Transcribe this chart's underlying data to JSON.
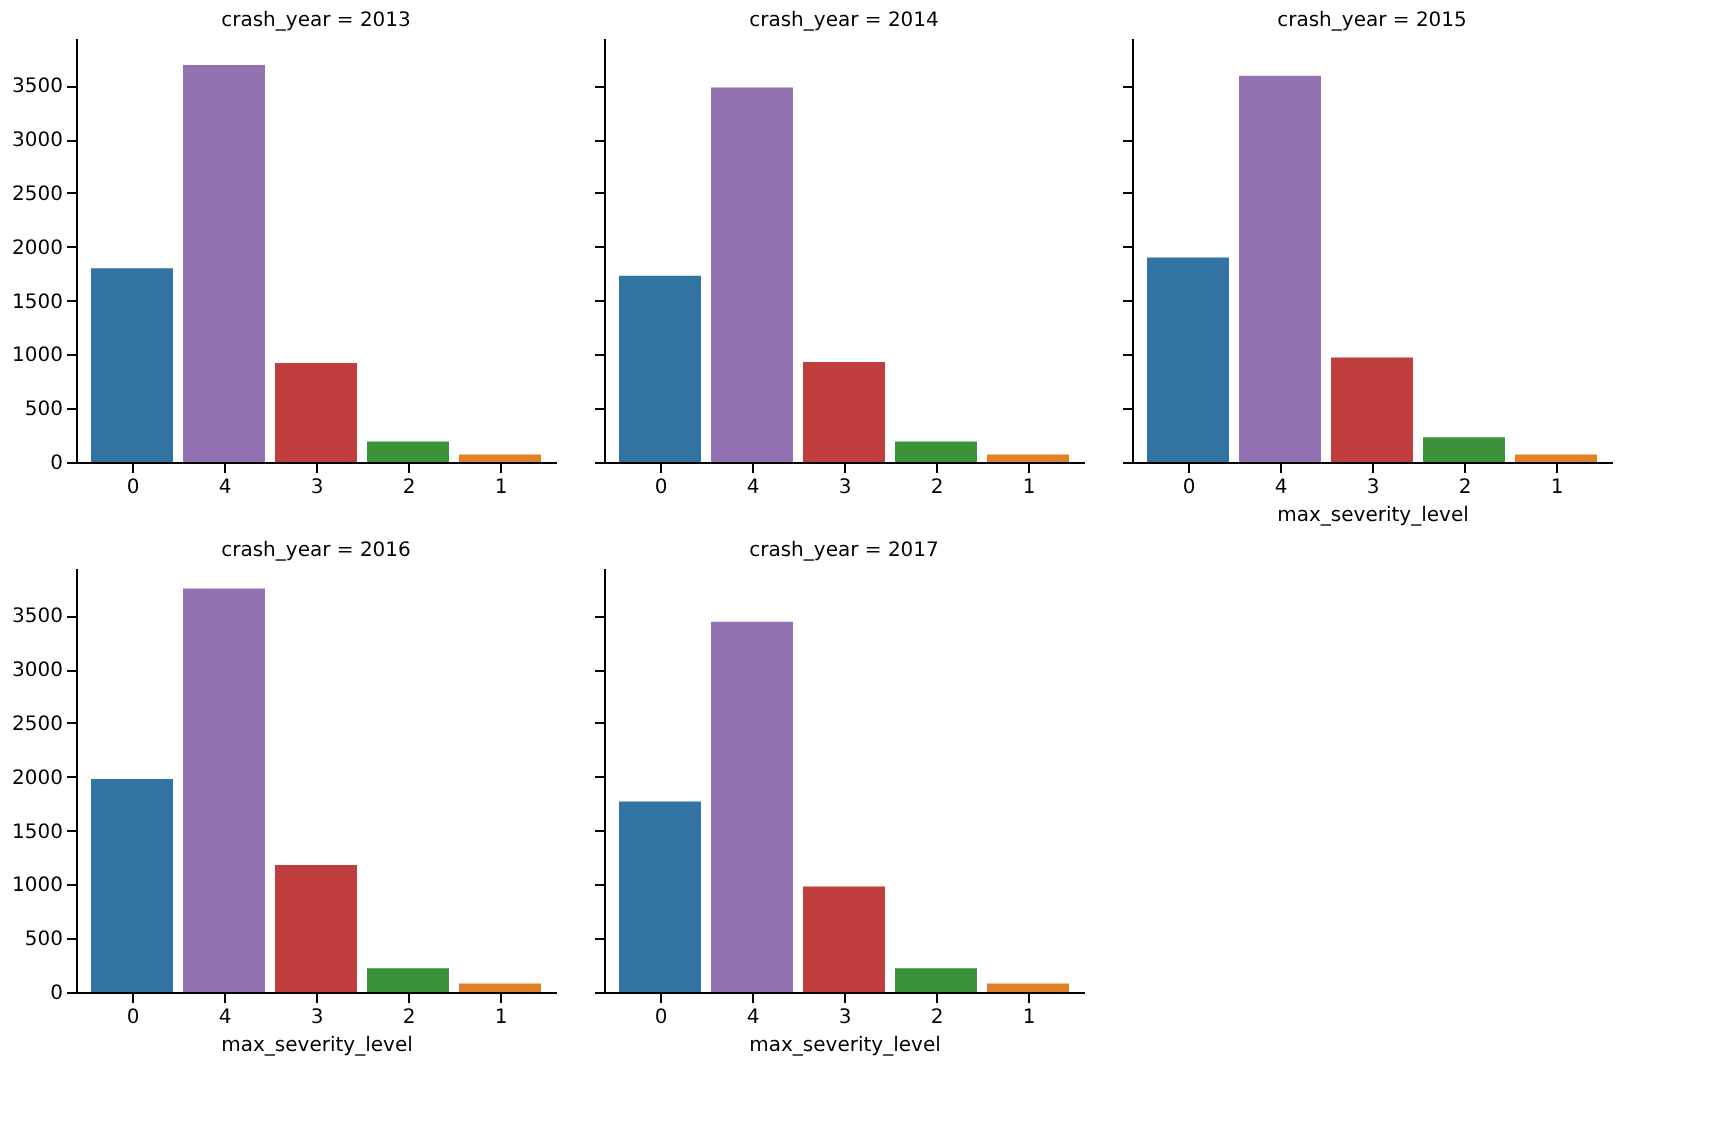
{
  "chart_data": [
    {
      "type": "bar",
      "title": "crash_year = 2013",
      "categories": [
        "0",
        "4",
        "3",
        "2",
        "1"
      ],
      "colors": [
        "#3274a1",
        "#9372b2",
        "#c03d3e",
        "#3a923a",
        "#e1812c"
      ],
      "values": [
        1800,
        3690,
        920,
        190,
        70
      ],
      "ylim": [
        0,
        3940
      ],
      "yticks": [
        0,
        500,
        1000,
        1500,
        2000,
        2500,
        3000,
        3500
      ]
    },
    {
      "type": "bar",
      "title": "crash_year = 2014",
      "categories": [
        "0",
        "4",
        "3",
        "2",
        "1"
      ],
      "colors": [
        "#3274a1",
        "#9372b2",
        "#c03d3e",
        "#3a923a",
        "#e1812c"
      ],
      "values": [
        1730,
        3480,
        930,
        190,
        70
      ],
      "ylim": [
        0,
        3940
      ],
      "yticks": [
        0,
        500,
        1000,
        1500,
        2000,
        2500,
        3000,
        3500
      ],
      "tick_labels": "x"
    },
    {
      "type": "bar",
      "title": "crash_year = 2015",
      "xlabel": "max_severity_level",
      "categories": [
        "0",
        "4",
        "3",
        "2",
        "1"
      ],
      "colors": [
        "#3274a1",
        "#9372b2",
        "#c03d3e",
        "#3a923a",
        "#e1812c"
      ],
      "values": [
        1900,
        3590,
        970,
        230,
        70
      ],
      "ylim": [
        0,
        3940
      ],
      "yticks": [
        0,
        500,
        1000,
        1500,
        2000,
        2500,
        3000,
        3500
      ],
      "tick_labels": "x"
    },
    {
      "type": "bar",
      "title": "crash_year = 2016",
      "xlabel": "max_severity_level",
      "categories": [
        "0",
        "4",
        "3",
        "2",
        "1"
      ],
      "colors": [
        "#3274a1",
        "#9372b2",
        "#c03d3e",
        "#3a923a",
        "#e1812c"
      ],
      "values": [
        1980,
        3750,
        1180,
        220,
        80
      ],
      "ylim": [
        0,
        3940
      ],
      "yticks": [
        0,
        500,
        1000,
        1500,
        2000,
        2500,
        3000,
        3500
      ]
    },
    {
      "type": "bar",
      "title": "crash_year = 2017",
      "xlabel": "max_severity_level",
      "categories": [
        "0",
        "4",
        "3",
        "2",
        "1"
      ],
      "colors": [
        "#3274a1",
        "#9372b2",
        "#c03d3e",
        "#3a923a",
        "#e1812c"
      ],
      "values": [
        1770,
        3440,
        980,
        220,
        80
      ],
      "ylim": [
        0,
        3940
      ],
      "yticks": [
        0,
        500,
        1000,
        1500,
        2000,
        2500,
        3000,
        3500
      ],
      "tick_labels": "x"
    }
  ]
}
